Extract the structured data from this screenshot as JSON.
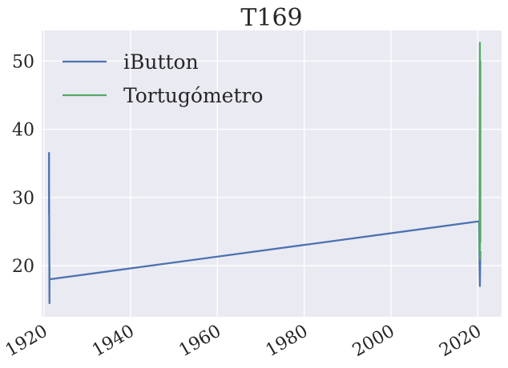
{
  "chart_data": {
    "type": "line",
    "title": "T169",
    "xlabel": "",
    "ylabel": "",
    "x_axis": "date (year)",
    "xlim": [
      1919.5,
      2025.5
    ],
    "ylim": [
      12.5,
      54.5
    ],
    "x_ticks": [
      1920,
      1940,
      1960,
      1980,
      2000,
      2020
    ],
    "y_ticks": [
      20,
      30,
      40,
      50
    ],
    "grid": true,
    "legend": "top-left",
    "background": "#EAEAF2",
    "series": [
      {
        "name": "iButton",
        "color": "#4C72B0",
        "points": [
          [
            1921.2,
            36.5
          ],
          [
            1921.2,
            27.5
          ],
          [
            1921.2,
            33.0
          ],
          [
            1921.3,
            14.5
          ],
          [
            1921.3,
            20.0
          ],
          [
            1921.3,
            18.0
          ],
          [
            2020.3,
            26.5
          ],
          [
            2020.4,
            21.0
          ],
          [
            2020.5,
            17.0
          ],
          [
            2020.6,
            22.0
          ]
        ]
      },
      {
        "name": "Tortugómetro",
        "color": "#55A868",
        "points": [
          [
            2020.4,
            22.0
          ],
          [
            2020.5,
            52.7
          ],
          [
            2020.5,
            21.0
          ],
          [
            2020.6,
            50.0
          ],
          [
            2020.6,
            23.5
          ]
        ]
      }
    ]
  }
}
